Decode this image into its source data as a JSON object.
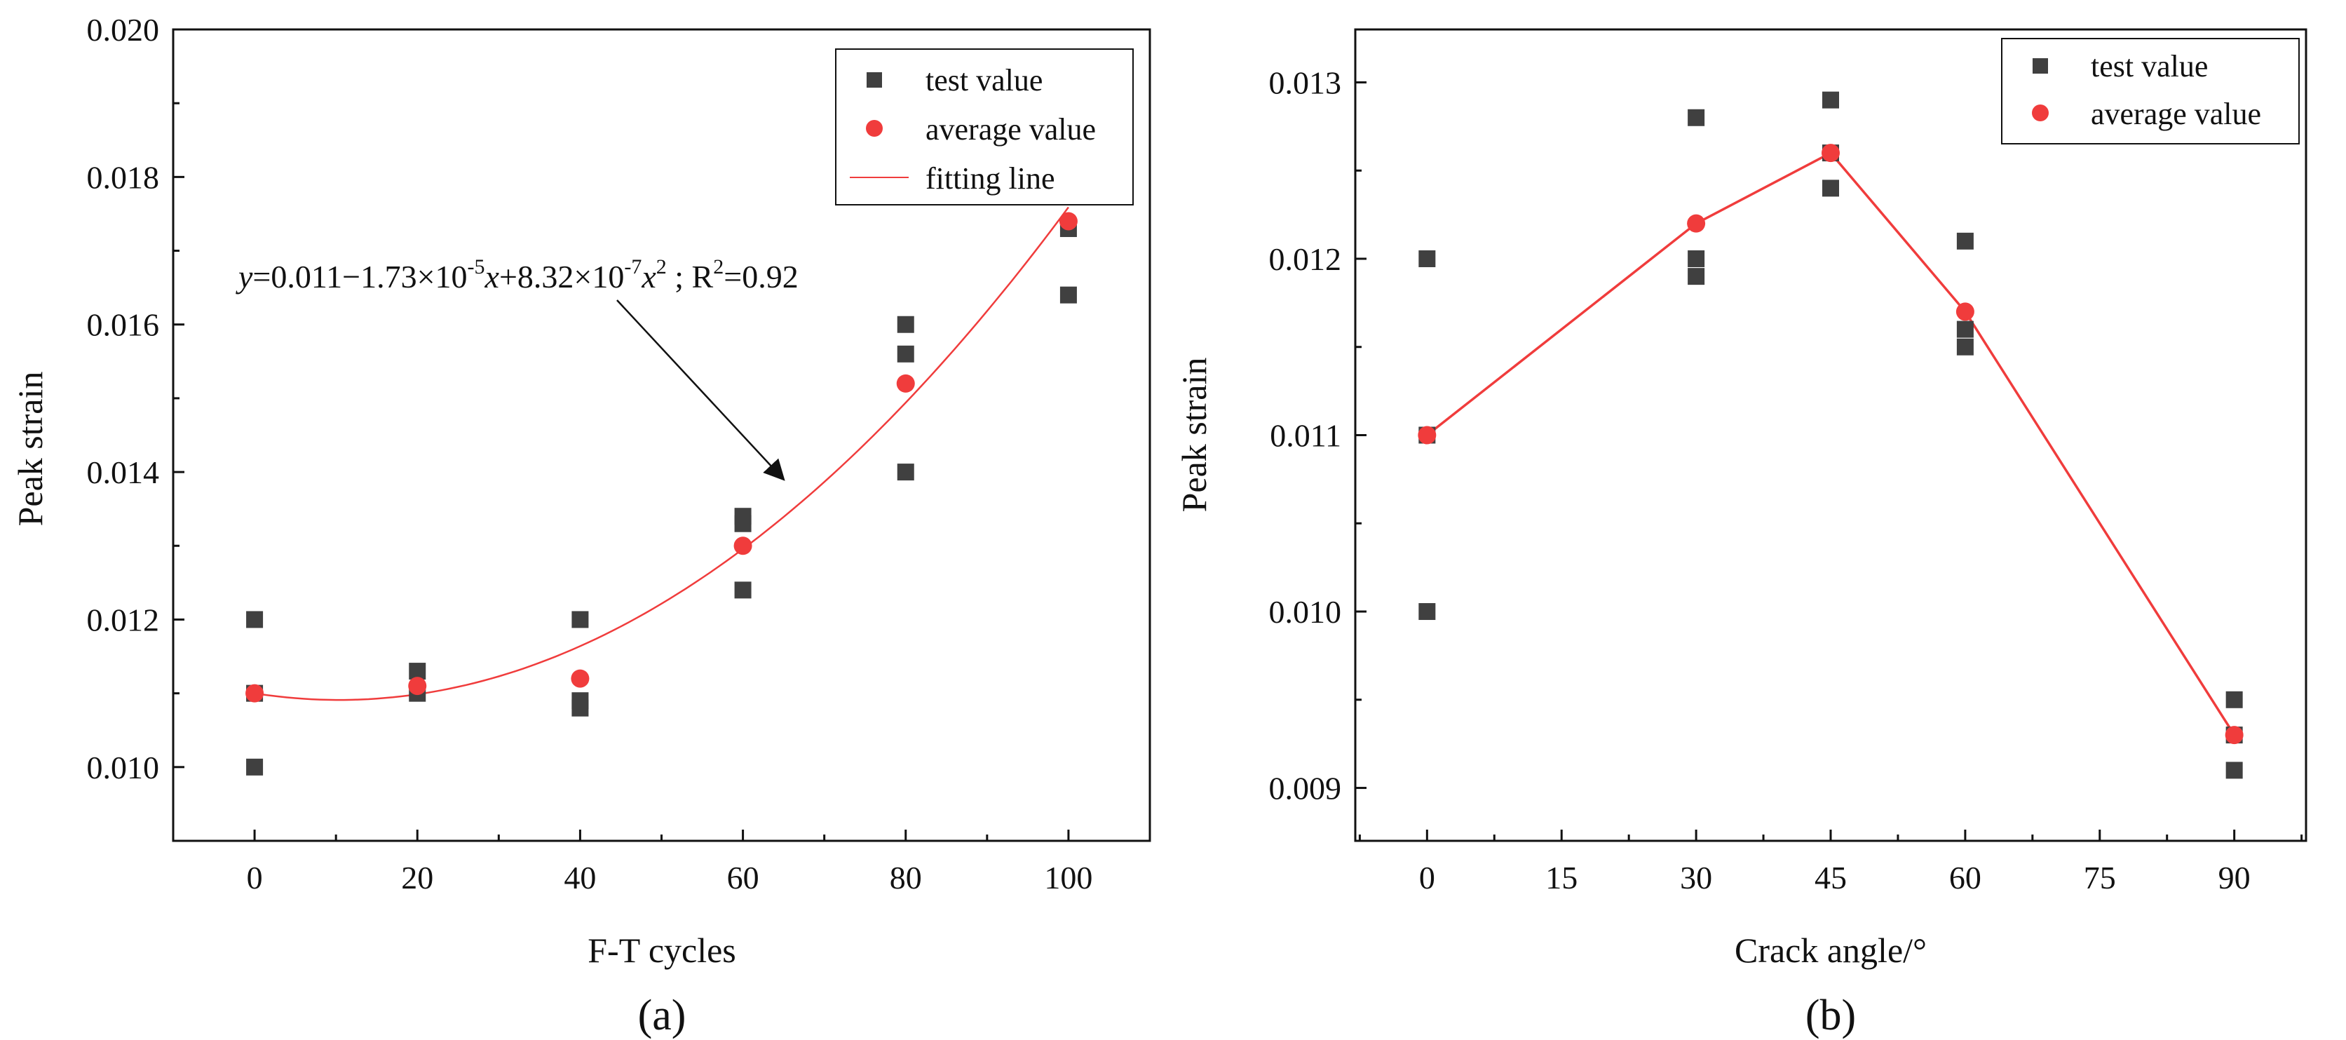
{
  "colors": {
    "test": "#404040",
    "average": "#f03c3c",
    "fit": "#f03c3c",
    "axis": "#111111"
  },
  "legend_location": "top-right",
  "chart_data": [
    {
      "type": "scatter",
      "panel_label": "(a)",
      "xlabel": "F-T cycles",
      "ylabel": "Peak strain",
      "xlim": [
        -10,
        110
      ],
      "ylim": [
        0.009,
        0.02
      ],
      "xticks": [
        0,
        20,
        40,
        60,
        80,
        100
      ],
      "xtick_labels": [
        "0",
        "20",
        "40",
        "60",
        "80",
        "100"
      ],
      "yticks": [
        0.01,
        0.012,
        0.014,
        0.016,
        0.018,
        0.02
      ],
      "ytick_labels": [
        "0.010",
        "0.012",
        "0.014",
        "0.016",
        "0.018",
        "0.020"
      ],
      "legend": [
        "test value",
        "average value",
        "fitting line"
      ],
      "series": [
        {
          "name": "test value",
          "marker": "square",
          "points": [
            [
              0,
              0.012
            ],
            [
              0,
              0.011
            ],
            [
              0,
              0.01
            ],
            [
              20,
              0.0113
            ],
            [
              20,
              0.011
            ],
            [
              40,
              0.012
            ],
            [
              40,
              0.0109
            ],
            [
              40,
              0.0108
            ],
            [
              60,
              0.0134
            ],
            [
              60,
              0.0133
            ],
            [
              60,
              0.0124
            ],
            [
              80,
              0.016
            ],
            [
              80,
              0.0156
            ],
            [
              80,
              0.014
            ],
            [
              100,
              0.0173
            ],
            [
              100,
              0.0164
            ]
          ]
        },
        {
          "name": "average value",
          "marker": "circle",
          "points": [
            [
              0,
              0.011
            ],
            [
              20,
              0.0111
            ],
            [
              40,
              0.0112
            ],
            [
              60,
              0.013
            ],
            [
              80,
              0.0152
            ],
            [
              100,
              0.0174
            ]
          ]
        },
        {
          "name": "fitting line",
          "type": "line",
          "fit": {
            "form": "quadratic",
            "c0": 0.011,
            "c1": -1.73e-05,
            "c2": 8.32e-07,
            "x_range": [
              0,
              100
            ]
          }
        }
      ],
      "annotation": {
        "equation_parts": {
          "y": "y",
          "p1": "=0.011−1.73×10",
          "e1": "-5",
          "x1": "x",
          "p2": "+8.32×10",
          "e2": "-7",
          "x2": "x",
          "e3": "2",
          "p3": " ; R",
          "e4": "2",
          "p4": "=0.92"
        },
        "arrow_target": [
          65,
          0.0139
        ]
      }
    },
    {
      "type": "line",
      "panel_label": "(b)",
      "xlabel": "Crack angle/°",
      "ylabel": "Peak strain",
      "xlim": [
        -8,
        98
      ],
      "ylim": [
        0.0087,
        0.0133
      ],
      "xticks": [
        0,
        15,
        30,
        45,
        60,
        75,
        90
      ],
      "xtick_labels": [
        "0",
        "15",
        "30",
        "45",
        "60",
        "75",
        "90"
      ],
      "yticks": [
        0.009,
        0.01,
        0.011,
        0.012,
        0.013
      ],
      "ytick_labels": [
        "0.009",
        "0.010",
        "0.011",
        "0.012",
        "0.013"
      ],
      "legend": [
        "test value",
        "average value"
      ],
      "series": [
        {
          "name": "test value",
          "marker": "square",
          "points": [
            [
              0,
              0.012
            ],
            [
              0,
              0.011
            ],
            [
              0,
              0.01
            ],
            [
              30,
              0.0128
            ],
            [
              30,
              0.012
            ],
            [
              30,
              0.0119
            ],
            [
              45,
              0.0129
            ],
            [
              45,
              0.0126
            ],
            [
              45,
              0.0124
            ],
            [
              60,
              0.0121
            ],
            [
              60,
              0.0116
            ],
            [
              60,
              0.0115
            ],
            [
              90,
              0.0095
            ],
            [
              90,
              0.0093
            ],
            [
              90,
              0.0091
            ]
          ]
        },
        {
          "name": "average value",
          "marker": "circle",
          "connect": true,
          "points": [
            [
              0,
              0.011
            ],
            [
              30,
              0.0122
            ],
            [
              45,
              0.0126
            ],
            [
              60,
              0.0117
            ],
            [
              90,
              0.0093
            ]
          ]
        }
      ]
    }
  ]
}
